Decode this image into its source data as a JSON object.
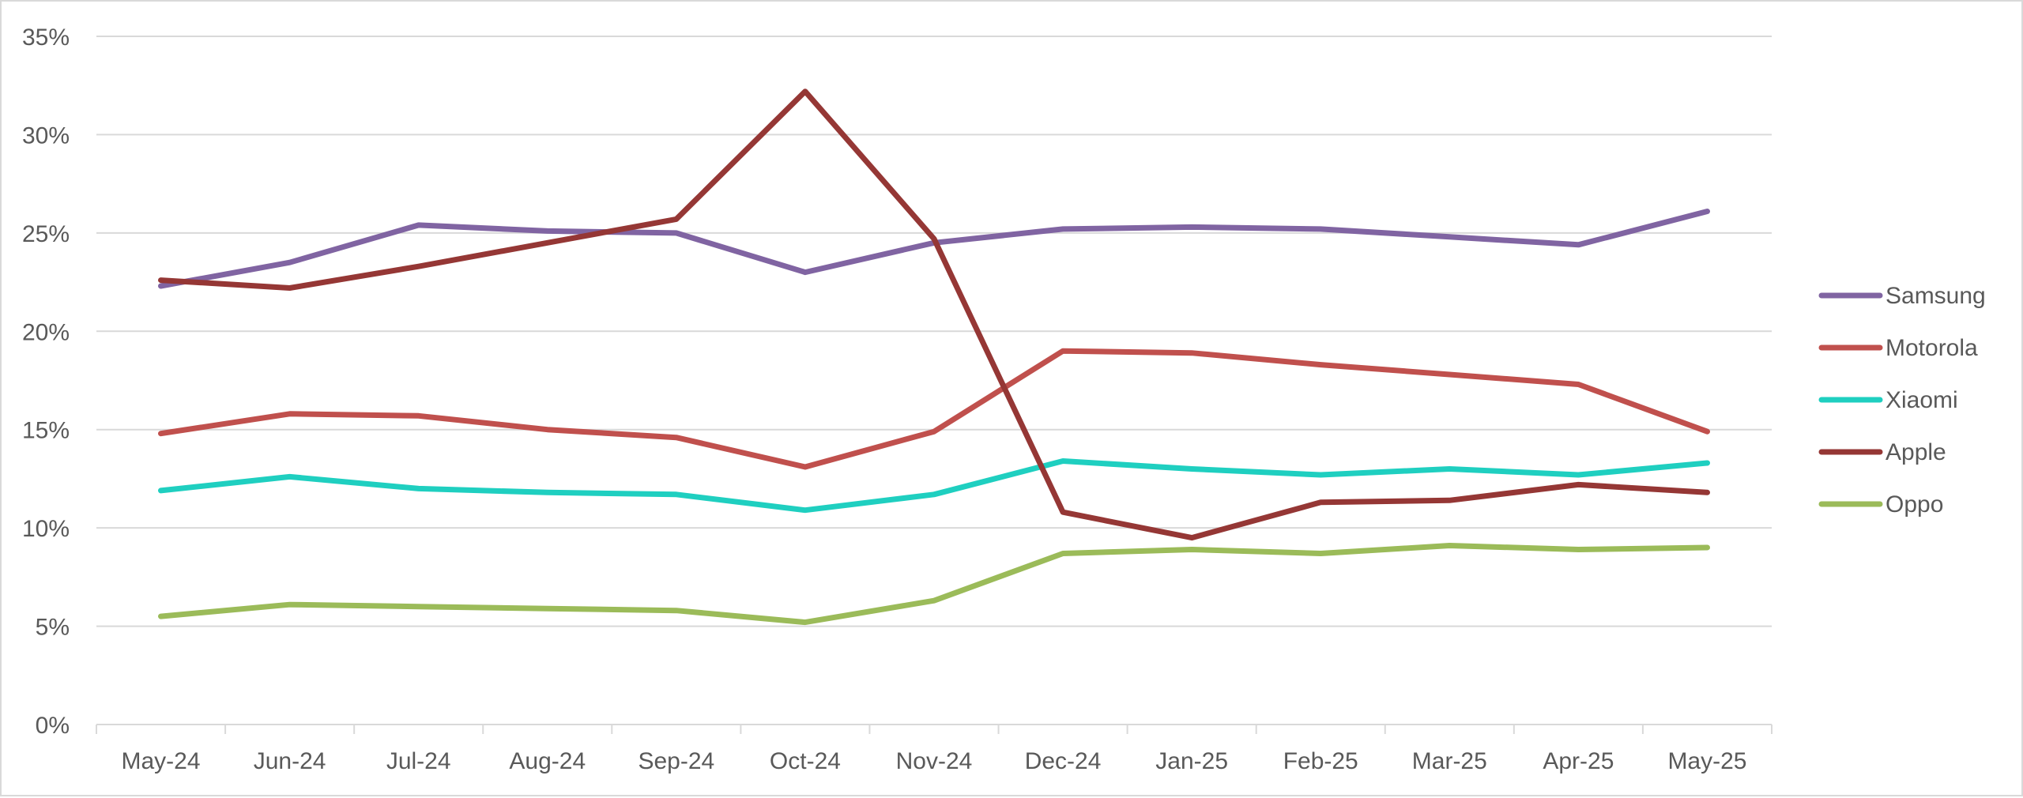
{
  "chart_data": {
    "type": "line",
    "title": "",
    "xlabel": "",
    "ylabel": "",
    "categories": [
      "May-24",
      "Jun-24",
      "Jul-24",
      "Aug-24",
      "Sep-24",
      "Oct-24",
      "Nov-24",
      "Dec-24",
      "Jan-25",
      "Feb-25",
      "Mar-25",
      "Apr-25",
      "May-25"
    ],
    "ylim": [
      0,
      35
    ],
    "y_ticks": [
      0,
      5,
      10,
      15,
      20,
      25,
      30,
      35
    ],
    "y_tick_labels": [
      "0%",
      "5%",
      "10%",
      "15%",
      "20%",
      "25%",
      "30%",
      "35%"
    ],
    "grid": "horizontal",
    "legend": "right",
    "series": [
      {
        "name": "Samsung",
        "color": "#8064a2",
        "values": [
          22.3,
          23.5,
          25.4,
          25.1,
          25.0,
          23.0,
          24.5,
          25.2,
          25.3,
          25.2,
          24.8,
          24.4,
          26.1
        ]
      },
      {
        "name": "Motorola",
        "color": "#c0504d",
        "values": [
          14.8,
          15.8,
          15.7,
          15.0,
          14.6,
          13.1,
          14.9,
          19.0,
          18.9,
          18.3,
          17.8,
          17.3,
          14.9
        ]
      },
      {
        "name": "Xiaomi",
        "color": "#1fcfc0",
        "values": [
          11.9,
          12.6,
          12.0,
          11.8,
          11.7,
          10.9,
          11.7,
          13.4,
          13.0,
          12.7,
          13.0,
          12.7,
          13.3
        ]
      },
      {
        "name": "Apple",
        "color": "#953735",
        "values": [
          22.6,
          22.2,
          23.3,
          24.5,
          25.7,
          32.2,
          24.7,
          10.8,
          9.5,
          11.3,
          11.4,
          12.2,
          11.8
        ]
      },
      {
        "name": "Oppo",
        "color": "#9bbb59",
        "values": [
          5.5,
          6.1,
          6.0,
          5.9,
          5.8,
          5.2,
          6.3,
          8.7,
          8.9,
          8.7,
          9.1,
          8.9,
          9.0
        ]
      }
    ]
  }
}
